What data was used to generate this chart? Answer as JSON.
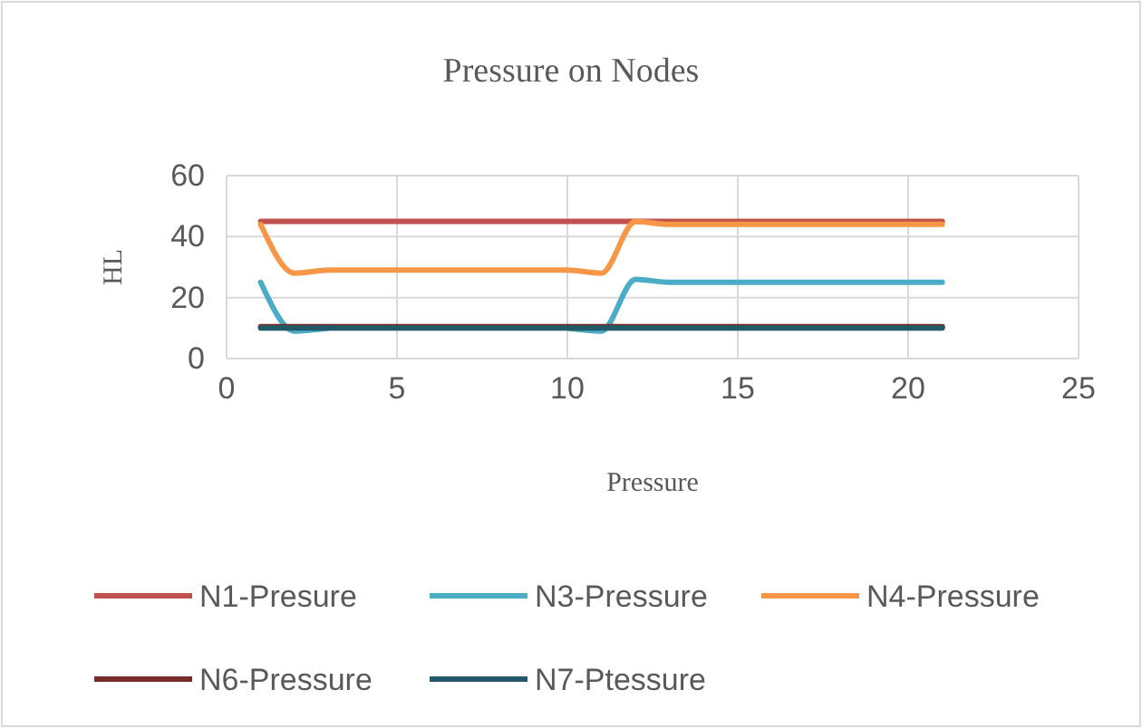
{
  "chart_data": {
    "type": "line",
    "title": "Pressure on Nodes",
    "xlabel": "Pressure",
    "ylabel": "HL",
    "x": [
      1,
      2,
      3,
      4,
      5,
      6,
      7,
      8,
      9,
      10,
      11,
      12,
      13,
      14,
      15,
      16,
      17,
      18,
      19,
      20,
      21
    ],
    "series": [
      {
        "name": "N1-Presure",
        "color": "#c0504d",
        "values": [
          45,
          45,
          45,
          45,
          45,
          45,
          45,
          45,
          45,
          45,
          45,
          45,
          45,
          45,
          45,
          45,
          45,
          45,
          45,
          45,
          45
        ]
      },
      {
        "name": "N3-Pressure",
        "color": "#4bacc6",
        "values": [
          25,
          9,
          10,
          null,
          null,
          null,
          null,
          null,
          null,
          10,
          9,
          26,
          25,
          25,
          25,
          25,
          25,
          25,
          25,
          25,
          25
        ]
      },
      {
        "name": "N4-Pressure",
        "color": "#f79646",
        "values": [
          44,
          28,
          29,
          29,
          29,
          29,
          29,
          29,
          29,
          29,
          28,
          45,
          44,
          44,
          44,
          44,
          44,
          44,
          44,
          44,
          44
        ]
      },
      {
        "name": "N6-Pressure",
        "color": "#772c2a",
        "values": [
          10.5,
          10.5,
          10.5,
          10.5,
          10.5,
          10.5,
          10.5,
          10.5,
          10.5,
          10.5,
          10.5,
          10.5,
          10.5,
          10.5,
          10.5,
          10.5,
          10.5,
          10.5,
          10.5,
          10.5,
          10.5
        ]
      },
      {
        "name": "N7-Ptessure",
        "color": "#215968",
        "values": [
          10,
          10,
          10,
          10,
          10,
          10,
          10,
          10,
          10,
          10,
          10,
          10,
          10,
          10,
          10,
          10,
          10,
          10,
          10,
          10,
          10
        ]
      }
    ],
    "xlim": [
      0,
      25
    ],
    "xticks": [
      0,
      5,
      10,
      15,
      20,
      25
    ],
    "ylim": [
      0,
      60
    ],
    "yticks": [
      0,
      20,
      40,
      60
    ],
    "grid": true,
    "legend": "bottom",
    "marker": "none",
    "line_style": "solid"
  }
}
